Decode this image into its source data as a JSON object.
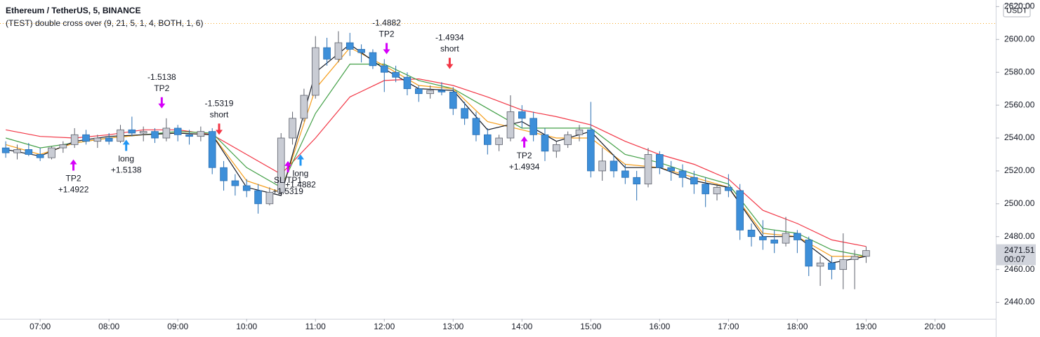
{
  "chart_data": {
    "type": "candlestick",
    "title": "Ethereum / TetherUS, 5, BINANCE",
    "subtitle": "(TEST) double cross over (9, 21, 5, 1, 4, BOTH, 1, 6)",
    "currency": "USDT",
    "last_price": 2471.51,
    "countdown": "00:07",
    "xlim": [
      385,
      1253
    ],
    "xticks": [
      {
        "value": 420,
        "label": "07:00"
      },
      {
        "value": 480,
        "label": "08:00"
      },
      {
        "value": 540,
        "label": "09:00"
      },
      {
        "value": 600,
        "label": "10:00"
      },
      {
        "value": 660,
        "label": "11:00"
      },
      {
        "value": 720,
        "label": "12:00"
      },
      {
        "value": 780,
        "label": "13:00"
      },
      {
        "value": 840,
        "label": "14:00"
      },
      {
        "value": 900,
        "label": "15:00"
      },
      {
        "value": 960,
        "label": "16:00"
      },
      {
        "value": 1020,
        "label": "17:00"
      },
      {
        "value": 1080,
        "label": "18:00"
      },
      {
        "value": 1140,
        "label": "19:00"
      },
      {
        "value": 1200,
        "label": "20:00"
      }
    ],
    "ylim": [
      2430,
      2624
    ],
    "yticks": [
      {
        "value": 2440,
        "label": "2440.00"
      },
      {
        "value": 2460,
        "label": "2460.00"
      },
      {
        "value": 2480,
        "label": "2480.00"
      },
      {
        "value": 2500,
        "label": "2500.00"
      },
      {
        "value": 2520,
        "label": "2520.00"
      },
      {
        "value": 2540,
        "label": "2540.00"
      },
      {
        "value": 2560,
        "label": "2560.00"
      },
      {
        "value": 2580,
        "label": "2580.00"
      },
      {
        "value": 2600,
        "label": "2600.00"
      },
      {
        "value": 2620,
        "label": "2620.00"
      }
    ],
    "up_color": "#c9ccd4",
    "down_color": "#3d8fd9",
    "x": [
      390,
      400,
      410,
      420,
      430,
      440,
      450,
      460,
      470,
      480,
      490,
      500,
      510,
      520,
      530,
      540,
      550,
      560,
      570,
      580,
      590,
      600,
      610,
      620,
      630,
      640,
      650,
      660,
      670,
      680,
      690,
      700,
      710,
      720,
      730,
      740,
      750,
      760,
      770,
      780,
      790,
      800,
      810,
      820,
      830,
      840,
      850,
      860,
      870,
      880,
      890,
      900,
      910,
      920,
      930,
      940,
      950,
      960,
      970,
      980,
      990,
      1000,
      1010,
      1020,
      1030,
      1040,
      1050,
      1060,
      1070,
      1080,
      1090,
      1100,
      1110,
      1120,
      1130,
      1140
    ],
    "ohlc": [
      [
        2534,
        2538,
        2528,
        2531
      ],
      [
        2531,
        2536,
        2527,
        2533
      ],
      [
        2533,
        2537,
        2529,
        2530
      ],
      [
        2530,
        2534,
        2526,
        2528
      ],
      [
        2528,
        2535,
        2527,
        2534
      ],
      [
        2534,
        2538,
        2531,
        2536
      ],
      [
        2536,
        2546,
        2534,
        2542
      ],
      [
        2542,
        2545,
        2536,
        2538
      ],
      [
        2538,
        2542,
        2534,
        2540
      ],
      [
        2540,
        2543,
        2536,
        2538
      ],
      [
        2538,
        2548,
        2537,
        2545
      ],
      [
        2545,
        2553,
        2541,
        2543
      ],
      [
        2543,
        2547,
        2538,
        2544
      ],
      [
        2544,
        2546,
        2537,
        2540
      ],
      [
        2540,
        2552,
        2538,
        2546
      ],
      [
        2546,
        2548,
        2538,
        2542
      ],
      [
        2542,
        2545,
        2536,
        2541
      ],
      [
        2541,
        2547,
        2538,
        2544
      ],
      [
        2544,
        2546,
        2518,
        2522
      ],
      [
        2522,
        2526,
        2508,
        2514
      ],
      [
        2514,
        2518,
        2505,
        2511
      ],
      [
        2511,
        2515,
        2504,
        2508
      ],
      [
        2508,
        2512,
        2494,
        2500
      ],
      [
        2500,
        2510,
        2499,
        2507
      ],
      [
        2507,
        2543,
        2506,
        2540
      ],
      [
        2540,
        2556,
        2536,
        2552
      ],
      [
        2552,
        2570,
        2550,
        2566
      ],
      [
        2566,
        2602,
        2564,
        2595
      ],
      [
        2595,
        2601,
        2584,
        2588
      ],
      [
        2588,
        2605,
        2586,
        2598
      ],
      [
        2598,
        2604,
        2590,
        2594
      ],
      [
        2594,
        2597,
        2586,
        2592
      ],
      [
        2592,
        2594,
        2582,
        2584
      ],
      [
        2584,
        2588,
        2568,
        2580
      ],
      [
        2580,
        2584,
        2574,
        2577
      ],
      [
        2577,
        2580,
        2566,
        2570
      ],
      [
        2570,
        2572,
        2562,
        2567
      ],
      [
        2567,
        2572,
        2564,
        2569
      ],
      [
        2569,
        2574,
        2566,
        2568
      ],
      [
        2568,
        2571,
        2554,
        2558
      ],
      [
        2558,
        2562,
        2548,
        2552
      ],
      [
        2552,
        2556,
        2538,
        2542
      ],
      [
        2542,
        2546,
        2530,
        2536
      ],
      [
        2536,
        2542,
        2532,
        2540
      ],
      [
        2540,
        2566,
        2538,
        2556
      ],
      [
        2556,
        2560,
        2546,
        2552
      ],
      [
        2552,
        2556,
        2538,
        2542
      ],
      [
        2542,
        2546,
        2526,
        2532
      ],
      [
        2532,
        2538,
        2528,
        2536
      ],
      [
        2536,
        2544,
        2534,
        2542
      ],
      [
        2542,
        2548,
        2538,
        2545
      ],
      [
        2545,
        2562,
        2516,
        2520
      ],
      [
        2520,
        2534,
        2514,
        2526
      ],
      [
        2526,
        2530,
        2516,
        2520
      ],
      [
        2520,
        2524,
        2512,
        2516
      ],
      [
        2516,
        2520,
        2502,
        2512
      ],
      [
        2512,
        2534,
        2510,
        2530
      ],
      [
        2530,
        2532,
        2518,
        2522
      ],
      [
        2522,
        2526,
        2514,
        2520
      ],
      [
        2520,
        2524,
        2510,
        2516
      ],
      [
        2516,
        2520,
        2506,
        2512
      ],
      [
        2512,
        2516,
        2498,
        2506
      ],
      [
        2506,
        2512,
        2502,
        2510
      ],
      [
        2510,
        2518,
        2504,
        2508
      ],
      [
        2508,
        2512,
        2478,
        2484
      ],
      [
        2484,
        2488,
        2474,
        2480
      ],
      [
        2480,
        2490,
        2472,
        2478
      ],
      [
        2478,
        2484,
        2470,
        2476
      ],
      [
        2476,
        2492,
        2474,
        2482
      ],
      [
        2482,
        2484,
        2470,
        2478
      ],
      [
        2478,
        2480,
        2456,
        2462
      ],
      [
        2462,
        2468,
        2450,
        2464
      ],
      [
        2464,
        2468,
        2454,
        2460
      ],
      [
        2460,
        2482,
        2448,
        2466
      ],
      [
        2466,
        2472,
        2448,
        2468
      ],
      [
        2468,
        2474,
        2464,
        2471.51
      ]
    ],
    "lines_x": [
      390,
      420,
      450,
      480,
      510,
      540,
      570,
      600,
      630,
      660,
      690,
      720,
      750,
      780,
      810,
      840,
      870,
      900,
      930,
      960,
      990,
      1020,
      1050,
      1080,
      1110,
      1140
    ],
    "lines": [
      {
        "color": "#f23645",
        "values": [
          2545,
          2541,
          2540,
          2542,
          2545,
          2545,
          2542,
          2530,
          2518,
          2540,
          2565,
          2575,
          2576,
          2572,
          2565,
          2557,
          2553,
          2548,
          2538,
          2530,
          2524,
          2515,
          2496,
          2488,
          2478,
          2474
        ]
      },
      {
        "color": "#43a047",
        "values": [
          2540,
          2534,
          2537,
          2540,
          2542,
          2544,
          2543,
          2522,
          2510,
          2555,
          2585,
          2585,
          2575,
          2570,
          2558,
          2546,
          2546,
          2546,
          2530,
          2525,
          2518,
          2512,
          2485,
          2482,
          2472,
          2468
        ]
      },
      {
        "color": "#f59d1a",
        "values": [
          2536,
          2530,
          2537,
          2540,
          2542,
          2543,
          2542,
          2514,
          2507,
          2570,
          2595,
          2584,
          2572,
          2570,
          2550,
          2545,
          2540,
          2540,
          2524,
          2522,
          2516,
          2510,
          2482,
          2480,
          2468,
          2468
        ]
      },
      {
        "color": "#131722",
        "values": [
          2533,
          2529,
          2538,
          2541,
          2542,
          2543,
          2542,
          2510,
          2505,
          2580,
          2597,
          2582,
          2570,
          2569,
          2545,
          2550,
          2538,
          2544,
          2522,
          2522,
          2514,
          2510,
          2480,
          2480,
          2464,
          2468
        ]
      }
    ],
    "signals": [
      {
        "x": 449,
        "price": 2527,
        "direction": "up",
        "color": "#d500f9",
        "lines": [
          "TP2",
          "+1.4922"
        ]
      },
      {
        "x": 495,
        "price": 2539,
        "direction": "up",
        "color": "#2196f3",
        "lines": [
          "long",
          "+1.5138"
        ]
      },
      {
        "x": 526,
        "price": 2558,
        "direction": "down",
        "color": "#d500f9",
        "lines": [
          "-1.5138",
          "TP2"
        ]
      },
      {
        "x": 576,
        "price": 2542,
        "direction": "down",
        "color": "#f23645",
        "lines": [
          "-1.5319",
          "short"
        ]
      },
      {
        "x": 636,
        "price": 2526,
        "direction": "up",
        "color": "#d500f9",
        "lines": [
          "SL/TP1",
          "+1.5319"
        ]
      },
      {
        "x": 647,
        "price": 2530,
        "direction": "up",
        "color": "#2196f3",
        "lines": [
          "long",
          "+1.4882"
        ]
      },
      {
        "x": 722,
        "price": 2591,
        "direction": "down",
        "color": "#d500f9",
        "lines": [
          "-1.4882",
          "TP2"
        ]
      },
      {
        "x": 777,
        "price": 2582,
        "direction": "down",
        "color": "#f23645",
        "lines": [
          "-1.4934",
          "short"
        ]
      },
      {
        "x": 842,
        "price": 2541,
        "direction": "up",
        "color": "#d500f9",
        "lines": [
          "TP2",
          "+1.4934"
        ]
      }
    ]
  }
}
